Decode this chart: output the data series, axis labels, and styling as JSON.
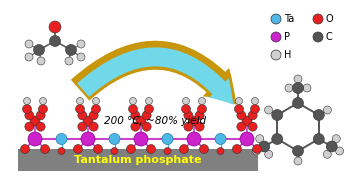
{
  "arrow_text": "200 °C, ~80% yield",
  "bottom_label": "Tantalum phosphate",
  "legend_items": [
    {
      "label": "Ta",
      "color": "#4db8e8",
      "col": 0,
      "row": 0
    },
    {
      "label": "O",
      "color": "#e82020",
      "col": 1,
      "row": 0
    },
    {
      "label": "P",
      "color": "#cc22cc",
      "col": 0,
      "row": 1
    },
    {
      "label": "C",
      "color": "#555555",
      "col": 1,
      "row": 1
    },
    {
      "label": "H",
      "color": "#d0d0d0",
      "col": 0,
      "row": 2
    }
  ],
  "bg_color": "#ffffff",
  "arrow_outer_color": "#c8960a",
  "arrow_inner_color": "#70d8e8",
  "catalyst_bar_color": "#808080",
  "catalyst_label_color": "#ffff00",
  "fig_width": 3.64,
  "fig_height": 1.89,
  "dpi": 100
}
